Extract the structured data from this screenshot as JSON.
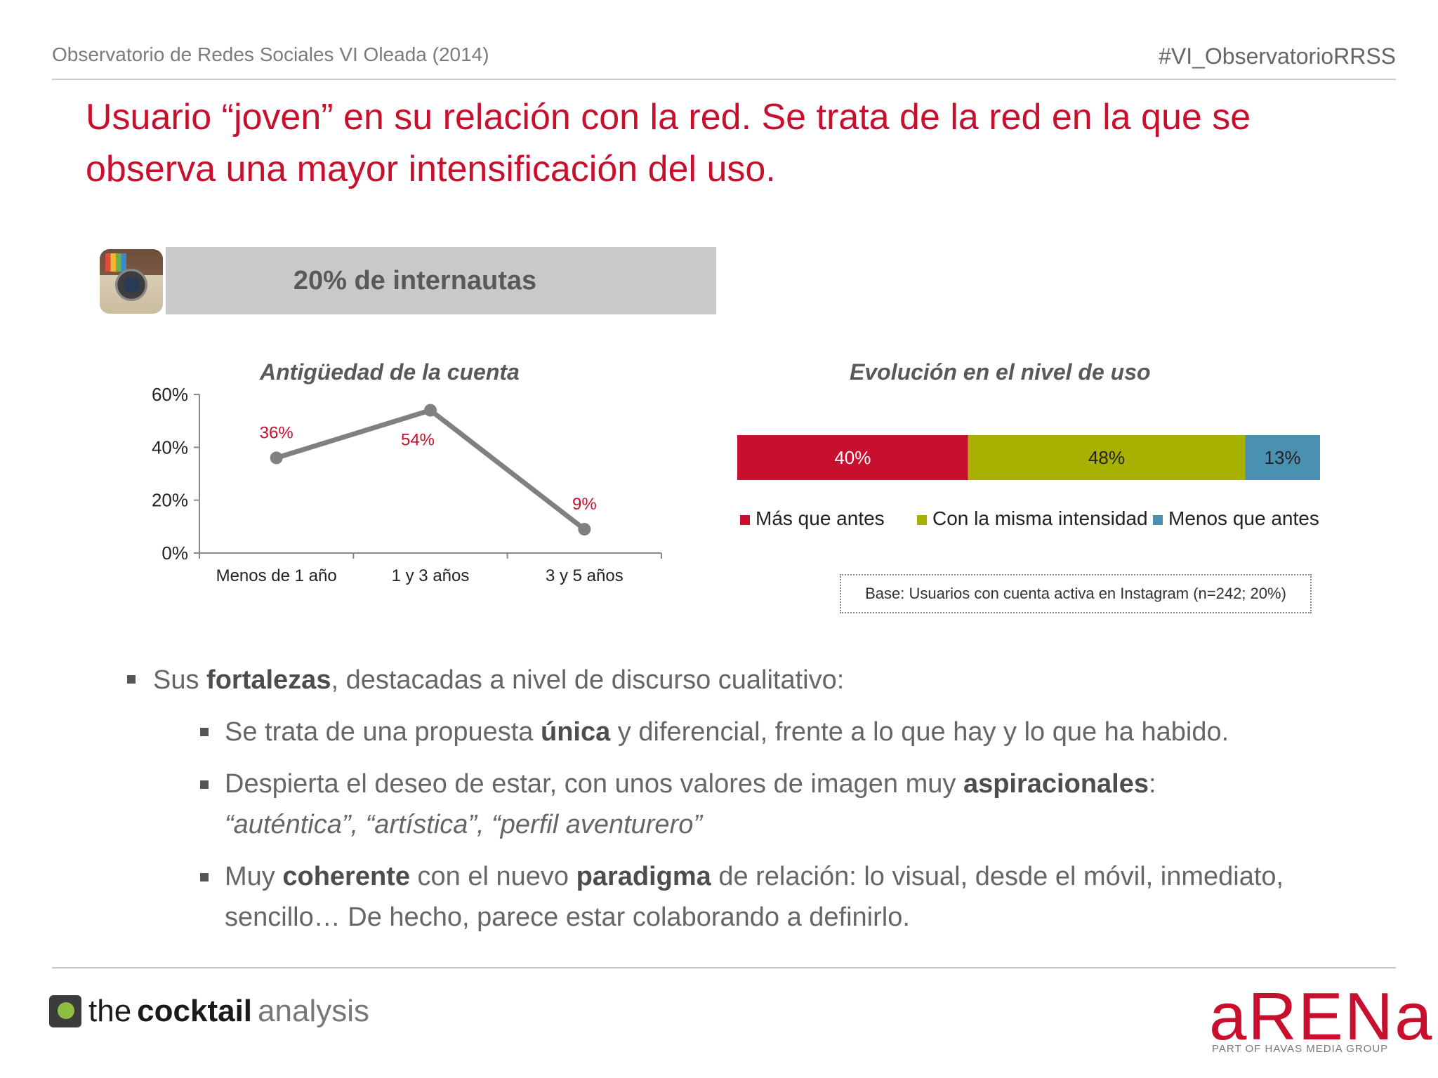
{
  "header": {
    "left": "Observatorio de Redes Sociales VI Oleada (2014)",
    "right": "#VI_ObservatorioRRSS"
  },
  "title": "Usuario “joven” en su relación con la red. Se trata de la red en la que se observa una mayor intensificación del uso.",
  "banner": "20% de internautas",
  "icon": "instagram-icon",
  "colors": {
    "accent": "#c8102e",
    "olive": "#a8b000",
    "teal": "#4a90b0",
    "line": "#808080"
  },
  "chart_data": [
    {
      "type": "line",
      "title": "Antigüedad de la cuenta",
      "categories": [
        "Menos de 1 año",
        "1 y 3 años",
        "3 y 5 años"
      ],
      "values": [
        36,
        54,
        9
      ],
      "labels": [
        "36%",
        "54%",
        "9%"
      ],
      "yticks": [
        "0%",
        "20%",
        "40%",
        "60%"
      ],
      "ylim": [
        0,
        60
      ],
      "grid": false
    },
    {
      "type": "bar",
      "stacked": true,
      "orientation": "horizontal",
      "title": "Evolución en el nivel de uso",
      "series": [
        {
          "name": "Más que antes",
          "value": 40,
          "label": "40%",
          "color": "#c8102e"
        },
        {
          "name": "Con la misma intensidad",
          "value": 48,
          "label": "48%",
          "color": "#a8b000"
        },
        {
          "name": "Menos que antes",
          "value": 13,
          "label": "13%",
          "color": "#4a90b0"
        }
      ],
      "legend": "bottom"
    }
  ],
  "base_note": "Base: Usuarios con cuenta activa en Instagram (n=242; 20%)",
  "bullets": {
    "b1": {
      "pre": "Sus ",
      "bold": "fortalezas",
      "post": ", destacadas a nivel de discurso cualitativo:"
    },
    "b2": {
      "pre": "Se trata de una propuesta ",
      "bold": "única",
      "post": " y diferencial, frente a lo que hay y lo que ha habido."
    },
    "b3": {
      "pre": "Despierta el deseo de estar, con unos valores de imagen muy ",
      "bold": "aspiracionales",
      "post": ":",
      "italic": "“auténtica”, “artística”, “perfil aventurero”"
    },
    "b4": {
      "pre": "Muy ",
      "bold": "coherente",
      "mid": " con el nuevo ",
      "bold2": "paradigma",
      "post": " de relación: lo visual, desde el móvil, inmediato, sencillo… De hecho, parece estar colaborando a definirlo."
    }
  },
  "footer": {
    "cocktail": {
      "a": "the",
      "b": "cocktail",
      "c": "analysis"
    },
    "arena": "aRENa",
    "arena_sub": "PART OF HAVAS MEDIA GROUP"
  }
}
